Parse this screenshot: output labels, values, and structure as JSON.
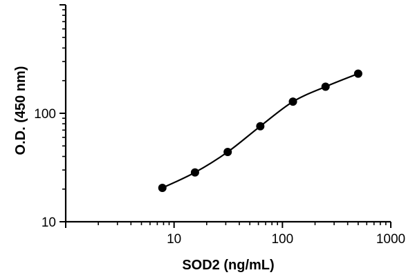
{
  "chart_data": {
    "type": "scatter",
    "title": "",
    "xlabel": "SOD2 (ng/mL)",
    "ylabel": "O.D. (450 nm)",
    "x_scale": "log",
    "y_scale": "log",
    "xlim": [
      1,
      1000
    ],
    "ylim": [
      10,
      1000
    ],
    "x_tick_labels": [
      "10",
      "100",
      "1000"
    ],
    "y_tick_labels": [
      "10",
      "100"
    ],
    "grid": false,
    "series": [
      {
        "x": [
          7.8,
          15.6,
          31.25,
          62.5,
          125,
          250,
          500
        ],
        "y": [
          20.5,
          28.5,
          44,
          76,
          128,
          176,
          232
        ],
        "fit": "curve"
      }
    ]
  }
}
